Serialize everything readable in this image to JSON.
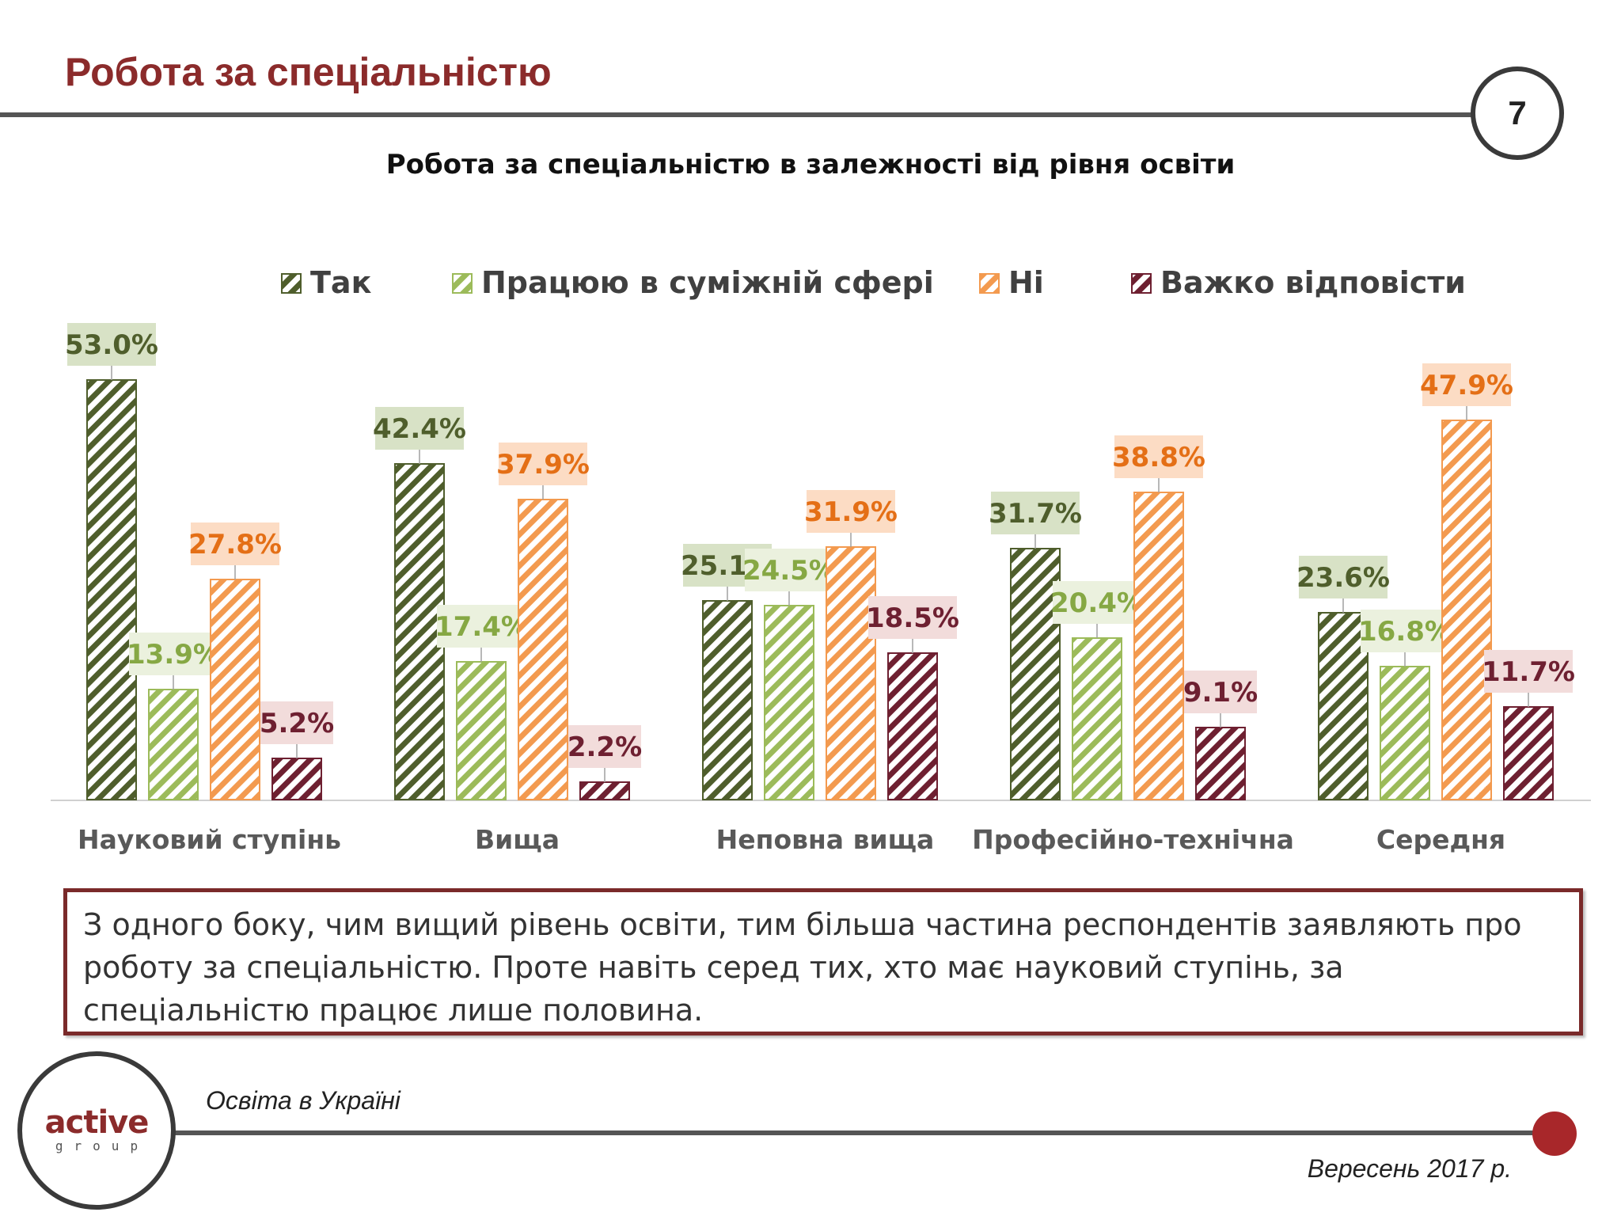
{
  "header": {
    "title": "Робота за спеціальністю",
    "page_number": "7"
  },
  "chart_data": {
    "type": "bar",
    "title": "Робота за спеціальністю в залежності від рівня освіти",
    "categories": [
      "Науковий ступінь",
      "Вища",
      "Неповна вища",
      "Професійно-технічна",
      "Середня"
    ],
    "series": [
      {
        "name": "Так",
        "values": [
          53.0,
          42.4,
          25.1,
          31.7,
          23.6
        ],
        "color": "#4f5e2c",
        "label_bg": "#d8e2c6",
        "label_color": "#4f5e2c"
      },
      {
        "name": "Працюю в суміжній сфері",
        "values": [
          13.9,
          17.4,
          24.5,
          20.4,
          16.8
        ],
        "color": "#9cbb5a",
        "label_bg": "#ebf1de",
        "label_color": "#86a844"
      },
      {
        "name": "Ні",
        "values": [
          27.8,
          37.9,
          31.9,
          38.8,
          47.9
        ],
        "color": "#f39a4f",
        "label_bg": "#fcdcc4",
        "label_color": "#e46f16"
      },
      {
        "name": "Важко відповісти",
        "values": [
          5.2,
          2.2,
          18.5,
          9.1,
          11.7
        ],
        "color": "#6e2031",
        "label_bg": "#f2dcdb",
        "label_color": "#6e2031"
      }
    ],
    "value_suffix": "%",
    "legend": "top",
    "ylim": [
      0,
      60
    ],
    "grid": false,
    "pattern": "diagonal-hatch"
  },
  "note": {
    "text": "З одного боку, чим вищий рівень освіти, тим більша частина респондентів заявляють про роботу за спеціальністю. Проте навіть серед тих, хто має науковий ступінь, за спеціальністю працює лише половина."
  },
  "logo": {
    "word": "active",
    "sub": "group"
  },
  "footer": {
    "left": "Освіта в Україні",
    "right": "Вересень 2017 р."
  },
  "colors": {
    "accent": "#8b2b2b",
    "rule": "#555555",
    "dot": "#a8272a"
  }
}
